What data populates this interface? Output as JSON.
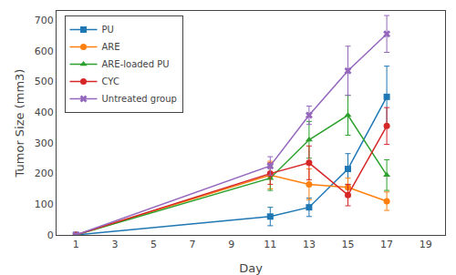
{
  "chart_data": {
    "type": "line",
    "xlabel": "Day",
    "ylabel": "Tumor Size (mm3)",
    "x": [
      1,
      11,
      13,
      15,
      17
    ],
    "series": [
      {
        "name": "PU",
        "values": [
          0,
          60,
          90,
          215,
          450
        ],
        "yerr": [
          0,
          30,
          30,
          50,
          100
        ],
        "marker": "square"
      },
      {
        "name": "ARE",
        "values": [
          0,
          195,
          165,
          155,
          110
        ],
        "yerr": [
          0,
          45,
          50,
          30,
          30
        ],
        "marker": "circle"
      },
      {
        "name": "ARE-loaded PU",
        "values": [
          0,
          185,
          310,
          390,
          195
        ],
        "yerr": [
          0,
          40,
          60,
          65,
          50
        ],
        "marker": "triangle"
      },
      {
        "name": "CYC",
        "values": [
          0,
          200,
          235,
          130,
          355
        ],
        "yerr": [
          0,
          35,
          55,
          35,
          60
        ],
        "marker": "circle"
      },
      {
        "name": "Untreated group",
        "values": [
          0,
          225,
          390,
          535,
          655
        ],
        "yerr": [
          0,
          30,
          30,
          80,
          60
        ],
        "marker": "x"
      }
    ],
    "xlim": [
      0,
      20
    ],
    "ylim": [
      0,
      730
    ],
    "xticks": [
      1,
      3,
      5,
      7,
      9,
      11,
      13,
      15,
      17,
      19
    ],
    "yticks": [
      0,
      100,
      200,
      300,
      400,
      500,
      600,
      700
    ],
    "grid": false,
    "legend": "upper left"
  }
}
